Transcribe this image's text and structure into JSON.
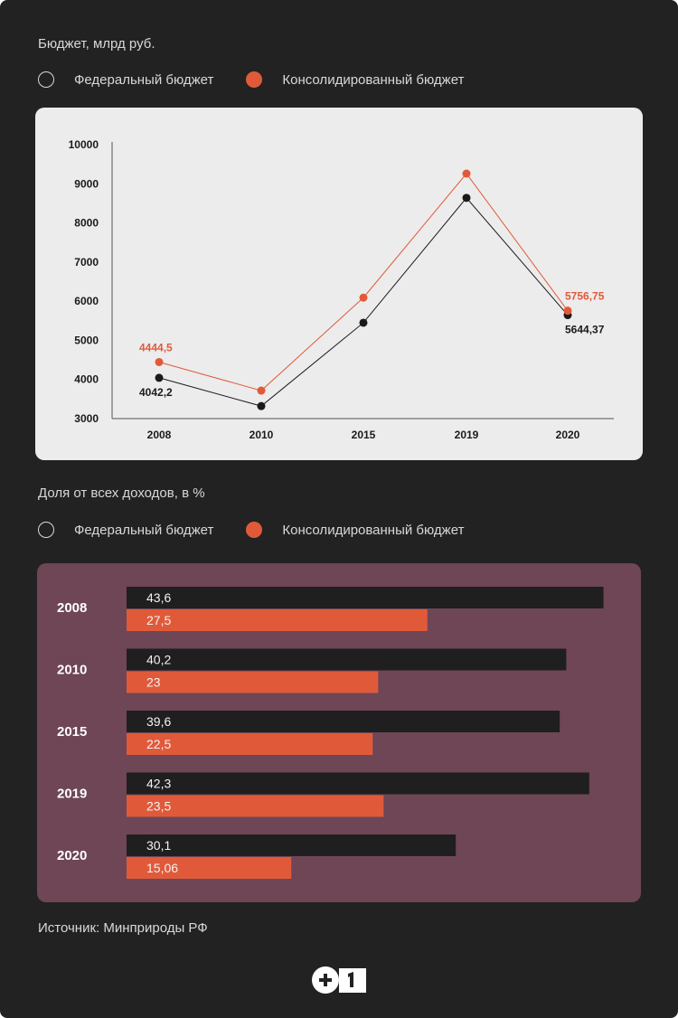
{
  "chart_data": [
    {
      "type": "line",
      "title": "Бюджет, млрд руб.",
      "categories": [
        "2008",
        "2010",
        "2015",
        "2019",
        "2020"
      ],
      "ylim": [
        3000,
        10000
      ],
      "yticks": [
        3000,
        4000,
        5000,
        6000,
        7000,
        8000,
        9000,
        10000
      ],
      "grid": false,
      "legend_placement": "top-left",
      "series": [
        {
          "name": "Федеральный бюджет",
          "color": "#1a1a1a",
          "values": [
            4042.2,
            3320,
            5450,
            8640,
            5644.37
          ],
          "labels": [
            "4042,2",
            "",
            "",
            "",
            "5644,37"
          ]
        },
        {
          "name": "Консолидированный бюджет",
          "color": "#e05a3a",
          "values": [
            4444.5,
            3715,
            6090,
            9260,
            5756.75
          ],
          "labels": [
            "4444,5",
            "",
            "",
            "",
            "5756,75"
          ]
        }
      ]
    },
    {
      "type": "bar",
      "orientation": "horizontal",
      "title": "Доля от всех доходов, в %",
      "categories": [
        "2008",
        "2010",
        "2015",
        "2019",
        "2020"
      ],
      "legend_placement": "top-left",
      "series": [
        {
          "name": "Федеральный бюджет",
          "color": "#1f1f1f",
          "values": [
            43.6,
            40.2,
            39.6,
            42.3,
            30.1
          ],
          "labels": [
            "43,6",
            "40,2",
            "39,6",
            "42,3",
            "30,1"
          ]
        },
        {
          "name": "Консолидированный бюджет",
          "color": "#e05a3a",
          "values": [
            27.5,
            23,
            22.5,
            23.5,
            15.06
          ],
          "labels": [
            "27,5",
            "23",
            "22,5",
            "23,5",
            "15,06"
          ]
        }
      ]
    }
  ],
  "legend": {
    "federal": "Федеральный бюджет",
    "consolidated": "Консолидированный бюджет"
  },
  "source": "Источник: Минприроды РФ",
  "logo": "+1"
}
